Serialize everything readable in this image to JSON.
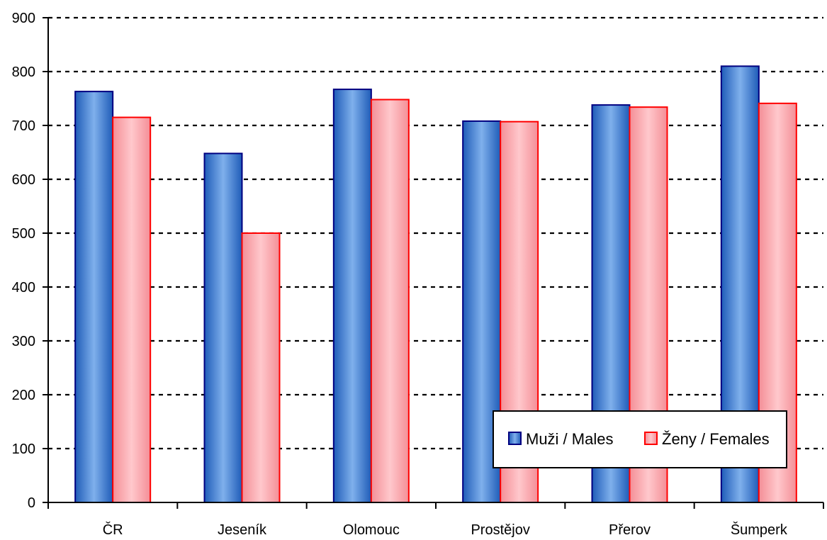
{
  "chart_data": {
    "type": "bar",
    "categories": [
      "ČR",
      "Jeseník",
      "Olomouc",
      "Prostějov",
      "Přerov",
      "Šumperk"
    ],
    "series": [
      {
        "name": "Muži / Males",
        "values": [
          763,
          648,
          767,
          708,
          738,
          810
        ],
        "fill_dark": "#1f5cb8",
        "fill_light": "#7fb0ec",
        "stroke": "#000080"
      },
      {
        "name": "Ženy / Females",
        "values": [
          715,
          500,
          748,
          707,
          734,
          741
        ],
        "fill_dark": "#f48e96",
        "fill_light": "#ffc8cc",
        "stroke": "#ff0000"
      }
    ],
    "ylim": [
      0,
      900
    ],
    "yticks": [
      0,
      100,
      200,
      300,
      400,
      500,
      600,
      700,
      800,
      900
    ],
    "grid": "dashed horizontal",
    "legend_position": "bottom-right",
    "xlabel": "",
    "ylabel": "",
    "title": ""
  }
}
